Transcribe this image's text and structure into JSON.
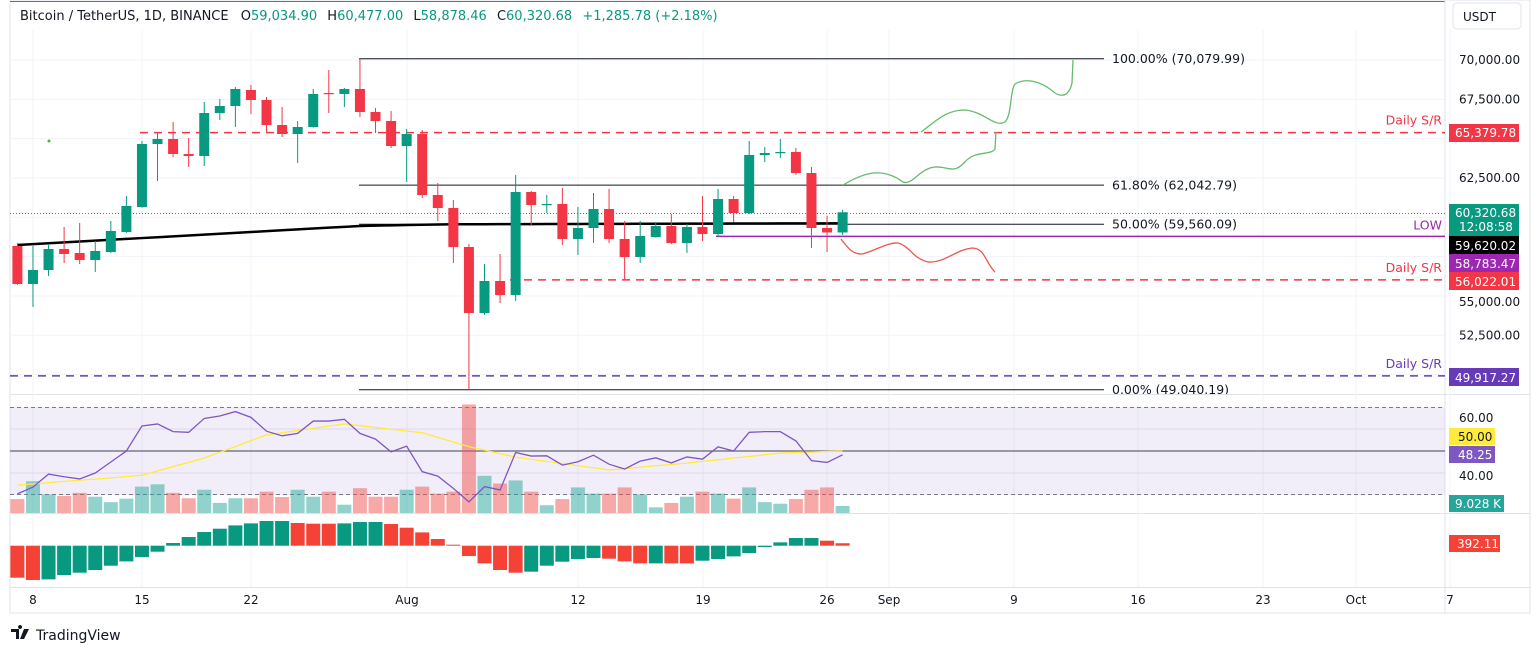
{
  "header": {
    "symbol": "Bitcoin / TetherUS, 1D, BINANCE",
    "o_label": "O",
    "o_value": "59,034.90",
    "h_label": "H",
    "h_value": "60,477.00",
    "l_label": "L",
    "l_value": "58,878.46",
    "c_label": "C",
    "c_value": "60,320.68",
    "change": "+1,285.78 (+2.18%)"
  },
  "currency": "USDT",
  "price_axis": {
    "ticks": [
      {
        "v": 70000,
        "label": "70,000.00"
      },
      {
        "v": 67500,
        "label": "67,500.00"
      },
      {
        "v": 62500,
        "label": "62,500.00"
      },
      {
        "v": 55000,
        "label": "55,000.00"
      },
      {
        "v": 52500,
        "label": "52,500.00"
      }
    ],
    "grid": [
      50000,
      52500,
      55000,
      57500,
      60000,
      62500,
      65000,
      67500,
      70000
    ]
  },
  "time_axis": [
    "8",
    "15",
    "22",
    "Aug",
    "12",
    "19",
    "26",
    "Sep",
    "9",
    "16",
    "23",
    "Oct",
    "7"
  ],
  "price_labels": {
    "sr_upper": {
      "value": "65,379.78",
      "color": "#f23645"
    },
    "last": {
      "value": "60,320.68",
      "countdown": "12:08:58",
      "color": "#089981"
    },
    "ma": {
      "value": "59,620.02",
      "color": "#000000"
    },
    "low": {
      "value": "58,783.47",
      "color": "#9c27b0"
    },
    "sr_lower": {
      "value": "56,022.01",
      "color": "#f23645"
    },
    "sr_bottom": {
      "value": "49,917.27",
      "color": "#673ab7"
    },
    "rsi_ma": {
      "value": "50.00",
      "color": "#ffeb3b"
    },
    "rsi": {
      "value": "48.25",
      "color": "#7e57c2"
    },
    "volume": {
      "value": "9.028 K",
      "color": "#26a69a"
    },
    "macd": {
      "value": "392.11",
      "color": "#f44336"
    }
  },
  "rsi_axis": [
    {
      "v": 60,
      "label": "60.00"
    },
    {
      "v": 40,
      "label": "40.00"
    }
  ],
  "fibonacci": [
    {
      "level": "100.00% (70,079.99)",
      "price": 70079.99
    },
    {
      "level": "61.80% (62,042.79)",
      "price": 62042.79
    },
    {
      "level": "50.00% (59,560.09)",
      "price": 59560.09
    },
    {
      "level": "0.00% (49,040.19)",
      "price": 49040.19
    }
  ],
  "horizontal_lines": [
    {
      "label": "Daily S/R",
      "price": 65379.78,
      "color": "#f23645",
      "style": "dashed"
    },
    {
      "label": "Daily S/R",
      "price": 56022.01,
      "color": "#f23645",
      "style": "dashed"
    },
    {
      "label": "Daily S/R",
      "price": 49917.27,
      "color": "#673ab7",
      "style": "dashed"
    },
    {
      "label": "LOW",
      "price": 58783.47,
      "color": "#9c27b0",
      "style": "solid"
    }
  ],
  "colors": {
    "up": "#089981",
    "down": "#f23645",
    "ma": "#000000",
    "rsi": "#7e57c2",
    "rsi_ma": "#ffeb3b",
    "macd_up": "#089981",
    "macd_down": "#f44336"
  },
  "chart_data": {
    "type": "candlestick",
    "candles_ohlc": [
      [
        58176,
        58367,
        55700,
        55760
      ],
      [
        55760,
        58176,
        54300,
        56650
      ],
      [
        56650,
        58300,
        56270,
        57985
      ],
      [
        57985,
        59384,
        57095,
        57667
      ],
      [
        57730,
        59638,
        57032,
        57285
      ],
      [
        57285,
        58494,
        56523,
        57858
      ],
      [
        57794,
        59765,
        57730,
        59130
      ],
      [
        59066,
        61354,
        59000,
        60719
      ],
      [
        60655,
        64850,
        60600,
        64660
      ],
      [
        64660,
        65360,
        62308,
        64978
      ],
      [
        64978,
        66058,
        63834,
        64025
      ],
      [
        64025,
        65042,
        63200,
        63898
      ],
      [
        63898,
        67330,
        63262,
        66630
      ],
      [
        66630,
        67520,
        66186,
        67076
      ],
      [
        67076,
        68284,
        65741,
        68156
      ],
      [
        68093,
        68410,
        66567,
        67457
      ],
      [
        67457,
        67648,
        65423,
        65868
      ],
      [
        65868,
        67012,
        65105,
        65296
      ],
      [
        65296,
        66122,
        63452,
        65741
      ],
      [
        65741,
        68156,
        65700,
        67839
      ],
      [
        67900,
        69364,
        66630,
        67839
      ],
      [
        67839,
        68220,
        67012,
        68156
      ],
      [
        68156,
        70080,
        66376,
        66694
      ],
      [
        66694,
        66948,
        65360,
        66122
      ],
      [
        66122,
        66757,
        64400,
        64533
      ],
      [
        64533,
        65613,
        62245,
        65296
      ],
      [
        65296,
        65550,
        61227,
        61418
      ],
      [
        61418,
        62181,
        59765,
        60592
      ],
      [
        60592,
        61100,
        57095,
        58113
      ],
      [
        58113,
        58303,
        49040,
        53917
      ],
      [
        53917,
        57032,
        53800,
        55951
      ],
      [
        55951,
        57667,
        54553,
        55061
      ],
      [
        55061,
        62690,
        54680,
        61609
      ],
      [
        61609,
        61672,
        59511,
        60782
      ],
      [
        60782,
        61418,
        60274,
        60846
      ],
      [
        60846,
        61863,
        58240,
        58621
      ],
      [
        58621,
        60655,
        57604,
        59320
      ],
      [
        59320,
        61545,
        58367,
        60528
      ],
      [
        60528,
        61800,
        58367,
        58621
      ],
      [
        58621,
        59765,
        56015,
        57477
      ],
      [
        57477,
        59765,
        57095,
        58812
      ],
      [
        58748,
        59700,
        58700,
        59447
      ],
      [
        59447,
        60210,
        58300,
        58367
      ],
      [
        58367,
        59575,
        57730,
        59384
      ],
      [
        59384,
        61354,
        58494,
        58939
      ],
      [
        58939,
        61800,
        58748,
        61164
      ],
      [
        61164,
        61354,
        59700,
        60274
      ],
      [
        60274,
        64851,
        60200,
        63961
      ],
      [
        63961,
        64469,
        63516,
        64088
      ],
      [
        64088,
        64978,
        63770,
        64152
      ],
      [
        64152,
        64406,
        62700,
        62817
      ],
      [
        62817,
        63198,
        58049,
        59320
      ],
      [
        59320,
        60100,
        57795,
        59035
      ],
      [
        59034.9,
        60477.0,
        58878.46,
        60320.68
      ]
    ],
    "ma200": [
      58240,
      58295,
      58350,
      58405,
      58460,
      58515,
      58570,
      58625,
      58680,
      58735,
      58790,
      58845,
      58900,
      58955,
      59010,
      59065,
      59120,
      59175,
      59230,
      59285,
      59340,
      59395,
      59450,
      59470,
      59490,
      59510,
      59530,
      59545,
      59560,
      59560,
      59562,
      59565,
      59567,
      59570,
      59572,
      59575,
      59577,
      59580,
      59582,
      59585,
      59587,
      59590,
      59592,
      59595,
      59597,
      59600,
      59602,
      59605,
      59607,
      59610,
      59612,
      59615,
      59617,
      59620.02
    ],
    "volume_k": [
      18,
      41,
      24,
      22,
      26,
      21,
      14,
      18.5,
      34,
      37,
      26,
      19,
      30,
      13,
      19,
      19,
      27.5,
      20.6,
      30,
      21,
      27.5,
      10.7,
      32,
      21,
      21,
      30,
      34,
      25,
      27.5,
      140,
      48,
      38,
      42,
      27.5,
      10,
      18,
      33,
      25,
      25,
      33,
      24,
      7.3,
      13,
      21,
      27.5,
      25,
      18.5,
      33,
      14,
      12,
      18,
      30,
      33,
      9.028
    ],
    "rsi": [
      30.5,
      33.6,
      39.5,
      38.3,
      37.3,
      40,
      45,
      50,
      61.4,
      62.3,
      58.8,
      58.5,
      64.8,
      65.9,
      67.9,
      65.3,
      59,
      56.9,
      58,
      63.6,
      63.6,
      64.4,
      58,
      55.4,
      49.6,
      52.2,
      40.6,
      38.6,
      33,
      26.9,
      33.8,
      32.3,
      49.3,
      47.7,
      47.8,
      43.6,
      45.1,
      48.1,
      44,
      41.8,
      45.4,
      46.9,
      44.6,
      47.3,
      46.3,
      51.9,
      50,
      58.5,
      58.8,
      58.8,
      54.6,
      45.6,
      44.8,
      48.25
    ],
    "rsi_ma": [
      34.5,
      35,
      35.6,
      36.2,
      36.7,
      37.2,
      37.8,
      38.4,
      39,
      40.9,
      42.9,
      44.8,
      46.8,
      49.4,
      52,
      54.7,
      57.3,
      58.3,
      59.3,
      60.3,
      61.3,
      62.3,
      61.5,
      60.7,
      59.9,
      59.1,
      58.3,
      56.2,
      54.1,
      52,
      50.4,
      48.8,
      47.2,
      46.2,
      45.3,
      44.3,
      43.3,
      42.4,
      41.4,
      42,
      42.6,
      43.3,
      43.9,
      44.5,
      45.3,
      46,
      46.8,
      47.5,
      48.3,
      49,
      49.3,
      49.5,
      49.8,
      50
    ],
    "rsi_band": [
      30,
      70
    ],
    "macd_hist": [
      -5120,
      -5490,
      -5390,
      -4690,
      -4320,
      -3890,
      -3200,
      -2510,
      -1810,
      -960,
      430,
      1390,
      2190,
      2720,
      3250,
      3570,
      3950,
      3950,
      3630,
      3520,
      3520,
      3570,
      3790,
      3790,
      3470,
      2880,
      2130,
      1070,
      160,
      -1650,
      -2830,
      -3890,
      -4320,
      -4160,
      -3200,
      -2560,
      -2130,
      -1970,
      -2080,
      -2510,
      -2830,
      -2830,
      -2830,
      -2830,
      -2400,
      -2130,
      -1710,
      -1170,
      -210,
      530,
      1230,
      1230,
      800,
      392.11
    ],
    "macd_hist_color": [
      "r",
      "r",
      "g",
      "g",
      "g",
      "g",
      "g",
      "g",
      "g",
      "g",
      "g",
      "g",
      "g",
      "g",
      "g",
      "g",
      "g",
      "g",
      "r",
      "r",
      "r",
      "g",
      "g",
      "g",
      "r",
      "r",
      "r",
      "r",
      "r",
      "r",
      "r",
      "r",
      "r",
      "g",
      "g",
      "g",
      "g",
      "g",
      "r",
      "r",
      "r",
      "g",
      "r",
      "r",
      "g",
      "g",
      "g",
      "g",
      "g",
      "g",
      "g",
      "g",
      "r",
      "r"
    ],
    "y_range": [
      49040,
      70080
    ]
  },
  "branding": {
    "logo": "TradingView",
    "text": "TradingView"
  }
}
